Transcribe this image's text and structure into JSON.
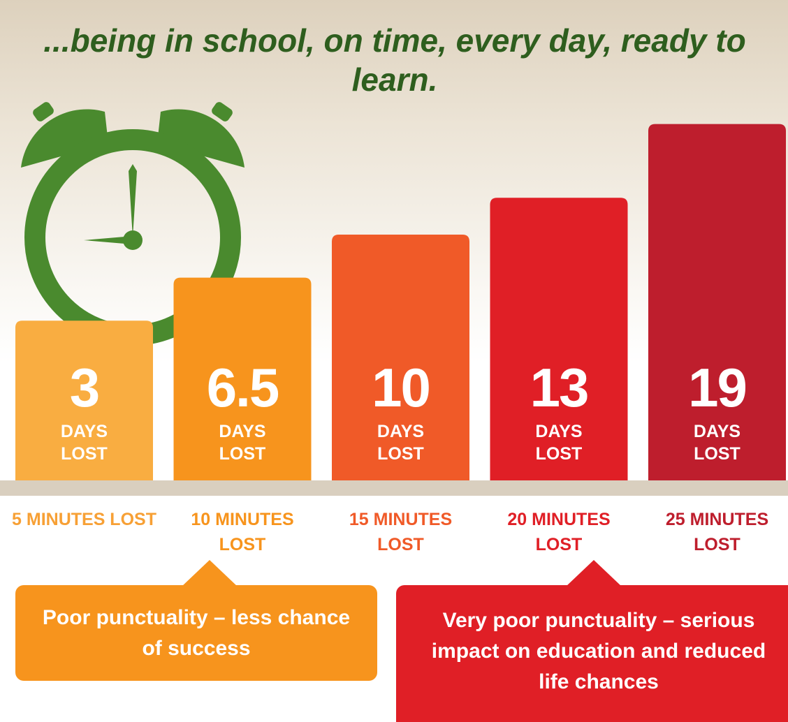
{
  "chart_data": {
    "type": "bar",
    "title": "...being in school, on time, every day, ready to learn.",
    "categories": [
      "5 MINUTES LOST",
      "10 MINUTES LOST",
      "15 MINUTES LOST",
      "20 MINUTES LOST",
      "25 MINUTES LOST"
    ],
    "values": [
      3,
      6.5,
      10,
      13,
      19
    ],
    "value_caption": "DAYS LOST",
    "colors": [
      "#f9ad41",
      "#f7941d",
      "#f05a28",
      "#e01f26",
      "#be1e2d"
    ],
    "ylim": [
      -10,
      20
    ],
    "annotations": [
      {
        "text": "Poor punctuality – less chance of success",
        "color": "#f7941d"
      },
      {
        "text": "Very poor punctuality – serious impact on education and reduced life chances",
        "color": "#e01f26"
      }
    ]
  }
}
